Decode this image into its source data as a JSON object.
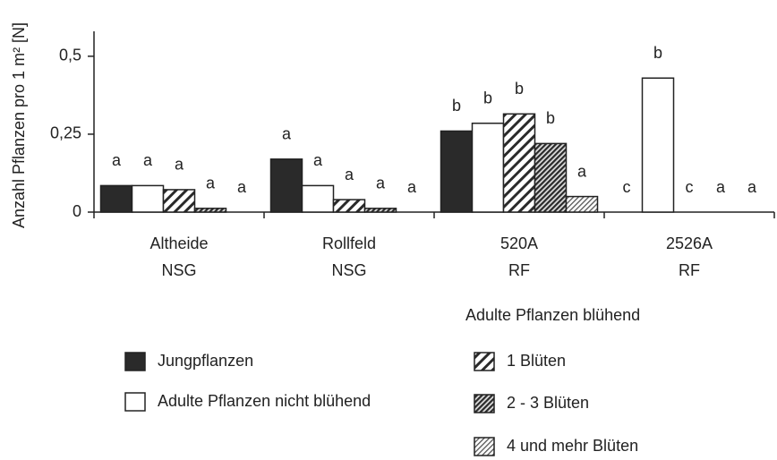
{
  "chart_data": {
    "type": "bar",
    "y_label": "Anzahl Pflanzen pro 1 m² [N]",
    "categories": [
      [
        "Altheide",
        "NSG"
      ],
      [
        "Rollfeld",
        "NSG"
      ],
      [
        "520A",
        "RF"
      ],
      [
        "2526A",
        "RF"
      ]
    ],
    "ylim": [
      0,
      0.58
    ],
    "yticks": [
      {
        "value": 0,
        "label": "0"
      },
      {
        "value": 0.25,
        "label": "0,25"
      },
      {
        "value": 0.5,
        "label": "0,5"
      }
    ],
    "legend_group_title": "Adulte Pflanzen blühend",
    "series": [
      {
        "name": "Jungpflanzen",
        "color": "#2a2a2a",
        "fill": "solid",
        "values": [
          0.085,
          0.17,
          0.26,
          0
        ],
        "letters": [
          "a",
          "a",
          "b",
          "c"
        ]
      },
      {
        "name": "Adulte Pflanzen nicht blühend",
        "color": "#ffffff",
        "fill": "solid",
        "values": [
          0.085,
          0.085,
          0.285,
          0.43
        ],
        "letters": [
          "a",
          "a",
          "b",
          "b"
        ]
      },
      {
        "name": "1 Blüten",
        "color": "#2a2a2a",
        "fill": "hatch-wide",
        "values": [
          0.072,
          0.04,
          0.315,
          0
        ],
        "letters": [
          "a",
          "a",
          "b",
          "c"
        ]
      },
      {
        "name": "2 - 3 Blüten",
        "color": "#2a2a2a",
        "fill": "hatch-dense",
        "values": [
          0.012,
          0.012,
          0.22,
          0
        ],
        "letters": [
          "a",
          "a",
          "b",
          "a"
        ]
      },
      {
        "name": "4 und mehr Blüten",
        "color": "#555555",
        "fill": "hatch-light",
        "values": [
          0,
          0,
          0.05,
          0
        ],
        "letters": [
          "a",
          "a",
          "a",
          "a"
        ]
      }
    ]
  }
}
